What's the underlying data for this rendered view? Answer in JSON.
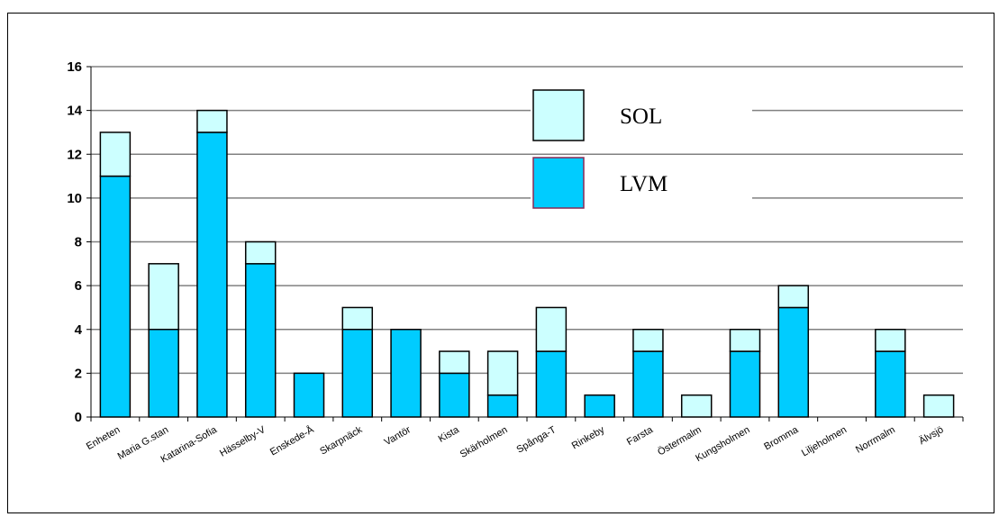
{
  "chart_data": {
    "type": "bar",
    "stacked": true,
    "categories": [
      "Enheten",
      "Maria G.stan",
      "Katarina-Sofia",
      "Hässelby-V",
      "Enskede-Å",
      "Skarpnäck",
      "Vantör",
      "Kista",
      "Skärholmen",
      "Spånga-T",
      "Rinkeby",
      "Farsta",
      "Östermalm",
      "Kungsholmen",
      "Bromma",
      "Liljeholmen",
      "Norrmalm",
      "Älvsjö"
    ],
    "series": [
      {
        "name": "LVM",
        "color": "#00CCFF",
        "values": [
          11,
          4,
          13,
          7,
          2,
          4,
          4,
          2,
          1,
          3,
          1,
          3,
          0,
          3,
          5,
          0,
          3,
          0
        ]
      },
      {
        "name": "SOL",
        "color": "#CCFFFF",
        "values": [
          2,
          3,
          1,
          1,
          0,
          1,
          0,
          1,
          2,
          2,
          0,
          1,
          1,
          1,
          1,
          0,
          1,
          1
        ]
      }
    ],
    "ylim": [
      0,
      16
    ],
    "yticks": [
      0,
      2,
      4,
      6,
      8,
      10,
      12,
      14,
      16
    ],
    "grid": true,
    "legend_position": "top-right",
    "title": "",
    "xlabel": "",
    "ylabel": ""
  }
}
